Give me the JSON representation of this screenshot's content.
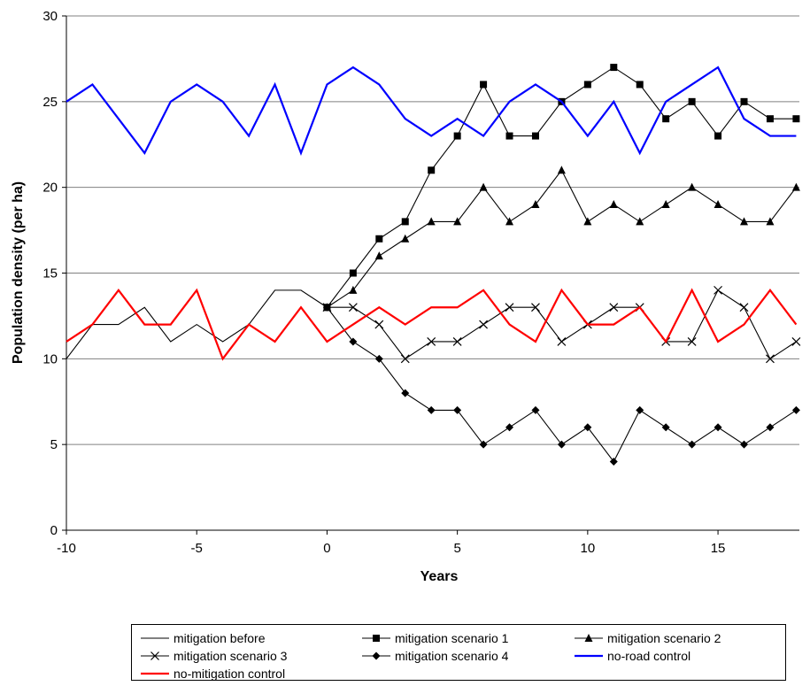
{
  "chart_data": {
    "type": "line",
    "title": "",
    "xlabel": "Years",
    "ylabel": "Population density (per ha)",
    "xlim": [
      -10,
      18
    ],
    "ylim": [
      0,
      30
    ],
    "x_ticks": [
      "-10",
      "-5",
      "0",
      "5",
      "10",
      "15"
    ],
    "y_ticks": [
      "0",
      "5",
      "10",
      "15",
      "20",
      "25",
      "30"
    ],
    "grid": "horizontal",
    "legend_position": "bottom",
    "series": [
      {
        "name": "mitigation before",
        "color": "#000000",
        "marker": "none",
        "x": [
          -10,
          -9,
          -8,
          -7,
          -6,
          -5,
          -4,
          -3,
          -2,
          -1,
          0
        ],
        "values": [
          10,
          12,
          12,
          13,
          11,
          12,
          11,
          12,
          14,
          14,
          13
        ]
      },
      {
        "name": "mitigation scenario 1",
        "color": "#000000",
        "marker": "square",
        "x": [
          0,
          1,
          2,
          3,
          4,
          5,
          6,
          7,
          8,
          9,
          10,
          11,
          12,
          13,
          14,
          15,
          16,
          17,
          18
        ],
        "values": [
          13,
          15,
          17,
          18,
          21,
          23,
          26,
          23,
          23,
          25,
          26,
          27,
          26,
          24,
          25,
          23,
          25,
          24,
          24
        ]
      },
      {
        "name": "mitigation scenario 2",
        "color": "#000000",
        "marker": "triangle",
        "x": [
          0,
          1,
          2,
          3,
          4,
          5,
          6,
          7,
          8,
          9,
          10,
          11,
          12,
          13,
          14,
          15,
          16,
          17,
          18
        ],
        "values": [
          13,
          14,
          16,
          17,
          18,
          18,
          20,
          18,
          19,
          21,
          18,
          19,
          18,
          19,
          20,
          19,
          18,
          18,
          20
        ]
      },
      {
        "name": "mitigation scenario 3",
        "color": "#000000",
        "marker": "x",
        "x": [
          0,
          1,
          2,
          3,
          4,
          5,
          6,
          7,
          8,
          9,
          10,
          11,
          12,
          13,
          14,
          15,
          16,
          17,
          18
        ],
        "values": [
          13,
          13,
          12,
          10,
          11,
          11,
          12,
          13,
          13,
          11,
          12,
          13,
          13,
          11,
          11,
          14,
          13,
          10,
          11
        ]
      },
      {
        "name": "mitigation scenario 4",
        "color": "#000000",
        "marker": "diamond",
        "x": [
          0,
          1,
          2,
          3,
          4,
          5,
          6,
          7,
          8,
          9,
          10,
          11,
          12,
          13,
          14,
          15,
          16,
          17,
          18
        ],
        "values": [
          13,
          11,
          10,
          8,
          7,
          7,
          5,
          6,
          7,
          5,
          6,
          4,
          7,
          6,
          5,
          6,
          5,
          6,
          7
        ]
      },
      {
        "name": "no-road control",
        "color": "#0000ff",
        "marker": "none",
        "x": [
          -10,
          -9,
          -8,
          -7,
          -6,
          -5,
          -4,
          -3,
          -2,
          -1,
          0,
          1,
          2,
          3,
          4,
          5,
          6,
          7,
          8,
          9,
          10,
          11,
          12,
          13,
          14,
          15,
          16,
          17,
          18
        ],
        "values": [
          25,
          26,
          24,
          22,
          25,
          26,
          25,
          23,
          26,
          22,
          26,
          27,
          26,
          24,
          23,
          24,
          23,
          25,
          26,
          25,
          23,
          25,
          22,
          25,
          26,
          27,
          24,
          23,
          23
        ]
      },
      {
        "name": "no-mitigation control",
        "color": "#ff0000",
        "marker": "none",
        "x": [
          -10,
          -9,
          -8,
          -7,
          -6,
          -5,
          -4,
          -3,
          -2,
          -1,
          0,
          1,
          2,
          3,
          4,
          5,
          6,
          7,
          8,
          9,
          10,
          11,
          12,
          13,
          14,
          15,
          16,
          17,
          18
        ],
        "values": [
          11,
          12,
          14,
          12,
          12,
          14,
          10,
          12,
          11,
          13,
          11,
          12,
          13,
          12,
          13,
          13,
          14,
          12,
          11,
          14,
          12,
          12,
          13,
          11,
          14,
          11,
          12,
          14,
          12
        ]
      }
    ]
  }
}
